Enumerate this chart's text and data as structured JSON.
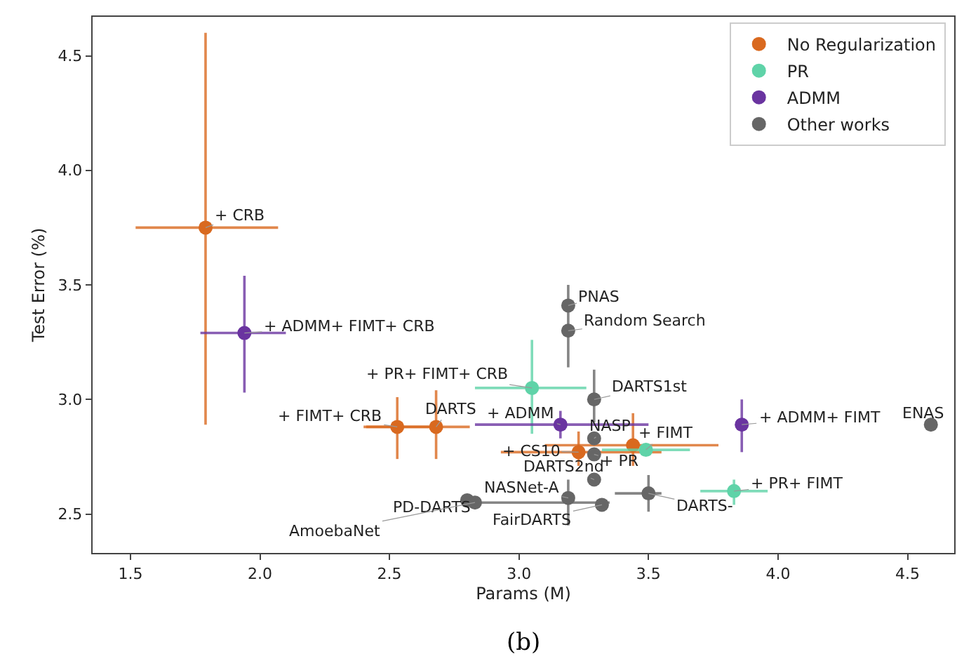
{
  "chart_data": {
    "type": "scatter",
    "xlabel": "Params (M)",
    "ylabel": "Test Error (%)",
    "xlim": [
      1.354,
      4.68
    ],
    "ylim": [
      2.33,
      4.67
    ],
    "xticks": [
      1.5,
      {
        "value": 2,
        "label": "2.0"
      },
      2.5,
      {
        "value": 3,
        "label": "3.0"
      },
      3.5,
      {
        "value": 4,
        "label": "4.0"
      },
      4.5
    ],
    "yticks": [
      2.5,
      {
        "value": 3,
        "label": "3.0"
      },
      3.5,
      {
        "value": 4,
        "label": "4.0"
      },
      4.5
    ],
    "legend": "top right",
    "marker": "circle",
    "series": [
      {
        "name": "No Regularization",
        "color": "#d9691f",
        "x": [
          1.79,
          2.53,
          2.68,
          3.23,
          3.44
        ],
        "values": [
          3.75,
          2.88,
          2.88,
          2.77,
          2.8
        ],
        "errors": [
          [
            2.89,
            4.6
          ],
          [
            2.74,
            3.01
          ],
          [
            2.74,
            3.04
          ],
          [
            2.71,
            2.86
          ],
          [
            2.71,
            2.94
          ]
        ],
        "xerrors": [
          [
            1.52,
            2.07
          ],
          [
            2.41,
            2.66
          ],
          [
            2.4,
            2.81
          ],
          [
            2.93,
            3.55
          ],
          [
            3.1,
            3.77
          ]
        ]
      },
      {
        "name": "PR",
        "color": "#5fd3a8",
        "x": [
          3.05,
          3.49,
          3.83
        ],
        "values": [
          3.05,
          2.78,
          2.6
        ],
        "errors": [
          [
            2.85,
            3.26
          ],
          null,
          [
            2.54,
            2.65
          ]
        ],
        "xerrors": [
          [
            2.83,
            3.26
          ],
          [
            3.32,
            3.66
          ],
          [
            3.7,
            3.96
          ]
        ]
      },
      {
        "name": "ADMM",
        "color": "#6a34a0",
        "x": [
          1.94,
          3.16,
          3.86
        ],
        "values": [
          3.29,
          2.89,
          2.89
        ],
        "errors": [
          [
            3.03,
            3.54
          ],
          [
            2.83,
            2.95
          ],
          [
            2.77,
            3.0
          ]
        ],
        "xerrors": [
          [
            1.77,
            2.1
          ],
          [
            2.83,
            3.5
          ],
          null
        ]
      },
      {
        "name": "Other works",
        "color": "#666666",
        "x": [
          3.19,
          3.19,
          3.29,
          3.29,
          3.29,
          3.29,
          3.5,
          3.32,
          3.19,
          2.8,
          2.83,
          4.59
        ],
        "values": [
          3.41,
          3.3,
          3.0,
          2.83,
          2.76,
          2.65,
          2.59,
          2.54,
          2.57,
          2.56,
          2.55,
          2.89
        ],
        "errors": [
          null,
          [
            3.14,
            3.5
          ],
          [
            2.9,
            3.13
          ],
          null,
          null,
          null,
          [
            2.51,
            2.67
          ],
          null,
          [
            2.45,
            2.65
          ],
          null,
          null,
          null
        ],
        "xerrors": [
          null,
          null,
          null,
          null,
          null,
          null,
          [
            3.37,
            3.55
          ],
          null,
          null,
          null,
          [
            2.8,
            3.35
          ],
          null
        ]
      }
    ],
    "annotations": [
      {
        "text": "+ CRB",
        "x": 1.79,
        "y": 3.75
      },
      {
        "text": "+ ADMM+ FIMT+ CRB",
        "x": 1.94,
        "y": 3.29
      },
      {
        "text": "+ PR+ FIMT+ CRB",
        "x": 3.05,
        "y": 3.05
      },
      {
        "text": "+ FIMT+ CRB",
        "x": 2.53,
        "y": 2.88
      },
      {
        "text": "DARTS",
        "x": 2.68,
        "y": 2.88
      },
      {
        "text": "+ ADMM",
        "x": 3.16,
        "y": 2.89
      },
      {
        "text": "+ CS10",
        "x": 3.23,
        "y": 2.77
      },
      {
        "text": "NASP",
        "x": 3.29,
        "y": 2.83
      },
      {
        "text": "+ FIMT",
        "x": 3.49,
        "y": 2.78
      },
      {
        "text": "+ PR",
        "x": 3.29,
        "y": 2.76
      },
      {
        "text": "DARTS2nd",
        "x": 3.29,
        "y": 2.65
      },
      {
        "text": "DARTS-",
        "x": 3.5,
        "y": 2.59
      },
      {
        "text": "FairDARTS",
        "x": 3.32,
        "y": 2.54
      },
      {
        "text": "NASNet-A",
        "x": 3.19,
        "y": 2.57
      },
      {
        "text": "PD-DARTS",
        "x": 2.8,
        "y": 2.56
      },
      {
        "text": "AmoebaNet",
        "x": 2.83,
        "y": 2.55
      },
      {
        "text": "PNAS",
        "x": 3.19,
        "y": 3.41
      },
      {
        "text": "Random Search",
        "x": 3.19,
        "y": 3.3
      },
      {
        "text": "DARTS1st",
        "x": 3.29,
        "y": 3.0
      },
      {
        "text": "+ ADMM+ FIMT",
        "x": 3.86,
        "y": 2.89
      },
      {
        "text": "+ PR+ FIMT",
        "x": 3.83,
        "y": 2.6
      },
      {
        "text": "ENAS",
        "x": 4.59,
        "y": 2.89
      },
      "(b)"
    ]
  }
}
